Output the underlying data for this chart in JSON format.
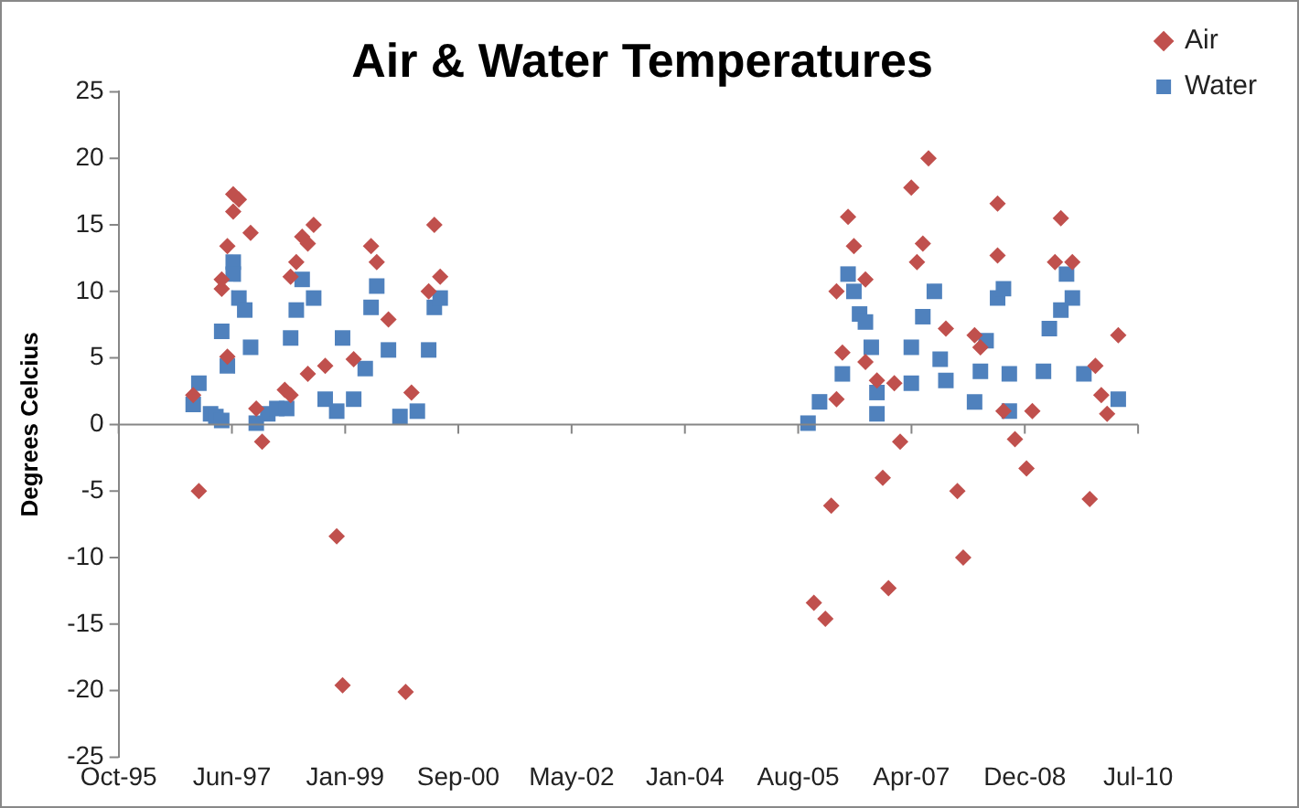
{
  "chart_data": {
    "type": "scatter",
    "title": "Air & Water Temperatures",
    "ylabel": "Degrees Celcius",
    "legend": "top right",
    "grid": false,
    "xlim": [
      "1995-10-17",
      "2010-07-29"
    ],
    "xticks": [
      {
        "value": "1995-10-17",
        "label": "Oct-95"
      },
      {
        "value": "1997-06-08",
        "label": "Jun-97"
      },
      {
        "value": "1999-01-29",
        "label": "Jan-99"
      },
      {
        "value": "2000-09-19",
        "label": "Sep-00"
      },
      {
        "value": "2002-05-12",
        "label": "May-02"
      },
      {
        "value": "2004-01-02",
        "label": "Jan-04"
      },
      {
        "value": "2005-08-24",
        "label": "Aug-05"
      },
      {
        "value": "2007-04-16",
        "label": "Apr-07"
      },
      {
        "value": "2008-12-06",
        "label": "Dec-08"
      },
      {
        "value": "2010-07-29",
        "label": "Jul-10"
      }
    ],
    "ref_lines": [
      {
        "axis": "y",
        "value": 0,
        "color": "#868686"
      }
    ],
    "ylim": [
      -25,
      25
    ],
    "yticks": [
      -25,
      -20,
      -15,
      -10,
      -5,
      0,
      5,
      10,
      15,
      20,
      25
    ],
    "series": [
      {
        "name": "Air",
        "color": "#c0504d",
        "marker": "diamond",
        "x": [
          "1996-12",
          "1997-06",
          "1997-07",
          "1997-06",
          "1997-09",
          "1997-05",
          "1997-04",
          "1997-04",
          "1997-05",
          "1996-11",
          "1997-11",
          "1997-10",
          "1998-03",
          "1998-04",
          "1998-07",
          "1998-10",
          "1998-06",
          "1998-08",
          "1998-07",
          "1998-05",
          "1998-04",
          "1998-12",
          "1999-01",
          "1999-03",
          "1999-06",
          "1999-07",
          "1999-09",
          "1999-12",
          "2000-01",
          "2000-05",
          "2000-06",
          "2000-04",
          "2007-07",
          "2007-04",
          "2008-07",
          "2009-06",
          "2006-05",
          "2006-06",
          "2007-06",
          "2007-05",
          "2008-07",
          "2009-05",
          "2009-08",
          "2006-03",
          "2006-08",
          "2010-04",
          "2006-04",
          "2006-08",
          "2006-10",
          "2007-01",
          "2008-04",
          "2009-12",
          "2010-01",
          "2010-02",
          "2006-03",
          "2009-01",
          "2008-08",
          "2007-02",
          "2008-10",
          "2006-11",
          "2008-12",
          "2007-12",
          "2009-11",
          "2006-02",
          "2008-01",
          "2006-12",
          "2005-11",
          "2006-01",
          "2007-10",
          "2008-03"
        ],
        "values": [
          -5.0,
          17.3,
          16.9,
          16.0,
          14.4,
          13.4,
          10.2,
          10.9,
          5.1,
          2.2,
          -1.3,
          1.2,
          2.6,
          2.2,
          3.8,
          4.4,
          14.1,
          15.0,
          13.6,
          12.2,
          11.1,
          -8.4,
          -19.6,
          4.9,
          13.4,
          12.2,
          7.9,
          -20.1,
          2.4,
          15.0,
          11.1,
          10.0,
          20.0,
          17.8,
          16.6,
          15.5,
          15.6,
          13.4,
          13.6,
          12.2,
          12.7,
          12.2,
          12.2,
          10.0,
          10.9,
          6.7,
          5.4,
          4.7,
          3.3,
          3.1,
          5.8,
          4.4,
          2.2,
          0.8,
          1.9,
          1.0,
          1.0,
          -1.3,
          -1.1,
          -4.0,
          -3.3,
          -5.0,
          -5.6,
          -6.1,
          -10.0,
          -12.3,
          -13.4,
          -14.6,
          7.2,
          6.7
        ]
      },
      {
        "name": "Water",
        "color": "#4f81bd",
        "marker": "square",
        "x": [
          "1996-11",
          "1996-12",
          "1997-02",
          "1997-03",
          "1997-04",
          "1997-05",
          "1997-04",
          "1997-06",
          "1997-06",
          "1997-07",
          "1997-08",
          "1997-09",
          "1997-10",
          "1997-12",
          "1998-02-01",
          "1998-03-25",
          "1998-04",
          "1998-05",
          "1998-06",
          "1998-08",
          "1998-10",
          "1998-12",
          "1999-01",
          "1999-03",
          "1999-05",
          "1999-06",
          "1999-07",
          "1999-09",
          "1999-11",
          "2000-02",
          "2000-04",
          "2000-05",
          "2000-06",
          "2005-10",
          "2005-12",
          "2006-04",
          "2006-05",
          "2006-06",
          "2006-07",
          "2006-08",
          "2006-09",
          "2006-10",
          "2006-10",
          "2007-04",
          "2007-04",
          "2007-06",
          "2007-08",
          "2007-09",
          "2007-10",
          "2008-03",
          "2008-04",
          "2008-05",
          "2008-07",
          "2008-08",
          "2008-09",
          "2008-09",
          "2009-03",
          "2009-04",
          "2009-06",
          "2009-07",
          "2009-08",
          "2009-10",
          "2010-04"
        ],
        "values": [
          1.5,
          3.1,
          0.8,
          0.6,
          0.3,
          4.4,
          7.0,
          12.2,
          11.3,
          9.5,
          8.6,
          5.8,
          0.1,
          0.8,
          1.2,
          1.2,
          6.5,
          8.6,
          10.9,
          9.5,
          1.9,
          1.0,
          6.5,
          1.9,
          4.2,
          8.8,
          10.4,
          5.6,
          0.6,
          1.0,
          5.6,
          8.8,
          9.5,
          0.1,
          1.7,
          3.8,
          11.3,
          10.0,
          8.3,
          7.7,
          5.8,
          0.8,
          2.4,
          3.1,
          5.8,
          8.1,
          10.0,
          4.9,
          3.3,
          1.7,
          4.0,
          6.3,
          9.5,
          10.2,
          3.8,
          1.0,
          4.0,
          7.2,
          8.6,
          11.3,
          9.5,
          3.8,
          1.9
        ]
      }
    ]
  }
}
